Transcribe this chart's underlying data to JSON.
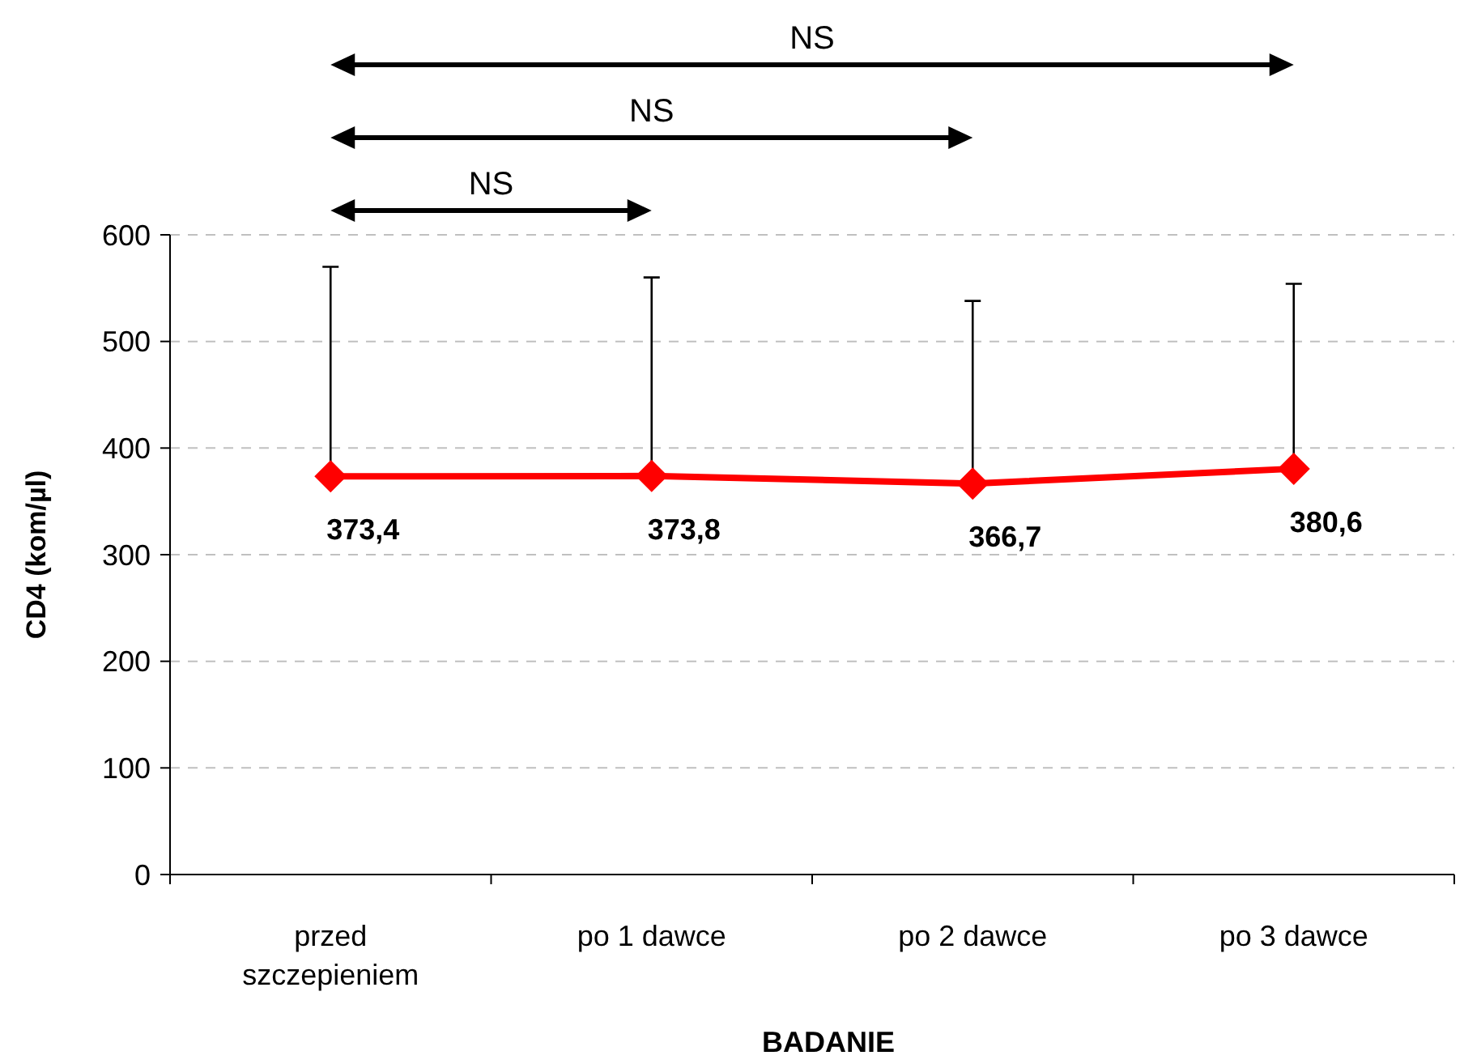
{
  "chart_data": {
    "type": "line",
    "xlabel": "BADANIE",
    "ylabel": "CD4 (kom/µl)",
    "categories": [
      "przed\nszczepieniem",
      "po 1 dawce",
      "po 2 dawce",
      "po 3 dawce"
    ],
    "series": [
      {
        "color": "#ff0000",
        "values": [
          373.4,
          373.8,
          366.7,
          380.6
        ],
        "errors": [
          [
            373.4,
            570
          ],
          [
            373.8,
            560
          ],
          [
            366.7,
            538
          ],
          [
            380.6,
            554
          ]
        ],
        "value_labels": [
          "373,4",
          "373,8",
          "366,7",
          "380,6"
        ]
      }
    ],
    "ylim": [
      0,
      600
    ],
    "yticks": [
      0,
      100,
      200,
      300,
      400,
      500,
      600
    ],
    "grid": "y",
    "marker": "diamond",
    "line_style": "solid",
    "annotations": [
      "NS",
      "NS",
      "NS"
    ]
  }
}
